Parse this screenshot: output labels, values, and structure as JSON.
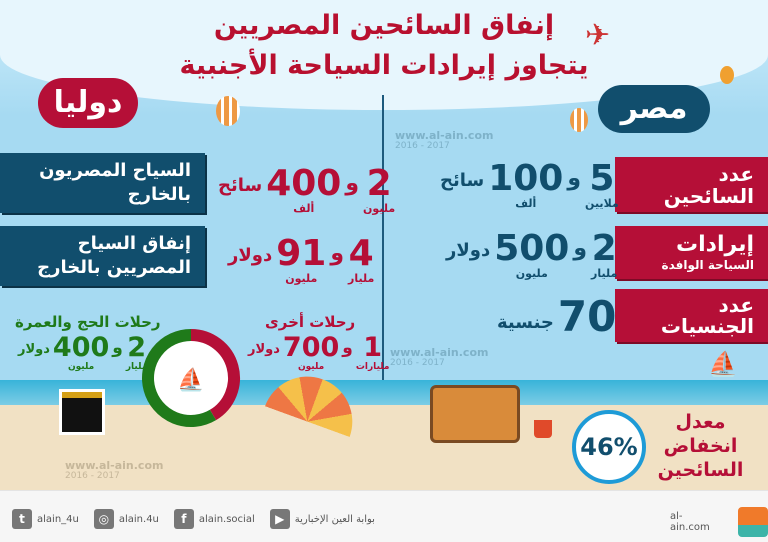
{
  "title": {
    "line1": "إنفاق السائحين المصريين",
    "line2": "يتجاوز إيرادات السياحة الأجنبية"
  },
  "international": {
    "heading": "دوليا",
    "rows": [
      {
        "label": "السياح المصريون بالخارج",
        "major": "2",
        "major_unit": "مليون",
        "and": "و",
        "minor": "400",
        "minor_unit": "ألف",
        "suffix": "سائح"
      },
      {
        "label": "إنفاق السياح المصريين بالخارج",
        "major": "4",
        "major_unit": "مليار",
        "and": "و",
        "minor": "91",
        "minor_unit": "مليون",
        "suffix": "دولار"
      }
    ],
    "hajj": {
      "label": "رحلات الحج والعمرة",
      "major": "2",
      "major_unit": "مليار",
      "and": "و",
      "minor": "400",
      "minor_unit": "مليون",
      "suffix": "دولار"
    },
    "other": {
      "label": "رحلات أخرى",
      "major": "1",
      "major_unit": "مليارات",
      "and": "و",
      "minor": "700",
      "minor_unit": "مليون",
      "suffix": "دولار"
    },
    "donut": {
      "other_share": 1.7,
      "hajj_share": 2.4,
      "other_color": "#b50f37",
      "hajj_color": "#1f7a1a"
    }
  },
  "egypt": {
    "heading": "مصر",
    "rows": [
      {
        "label": "عدد السائحين",
        "major": "5",
        "major_unit": "ملايين",
        "and": "و",
        "minor": "100",
        "minor_unit": "ألف",
        "suffix": "سائح"
      },
      {
        "label": "إيرادات",
        "sublabel": "السياحة الوافدة",
        "major": "2",
        "major_unit": "مليار",
        "and": "و",
        "minor": "500",
        "minor_unit": "مليون",
        "suffix": "دولار"
      },
      {
        "label": "عدد الجنسيات",
        "major": "70",
        "suffix": "جنسية"
      }
    ],
    "decline": {
      "value": "46%",
      "label": "معدل انخفاض السائحين"
    }
  },
  "watermark": {
    "site": "www.al-ain.com",
    "years": "2016 - 2017"
  },
  "footer": {
    "twitter": "alain_4u",
    "instagram": "alain.4u",
    "facebook": "alain.social",
    "youtube": "بوابة العين الإخبارية",
    "site": "al-ain.com"
  },
  "colors": {
    "red": "#b50f37",
    "navy": "#114e6d",
    "green": "#1f7a1a"
  }
}
